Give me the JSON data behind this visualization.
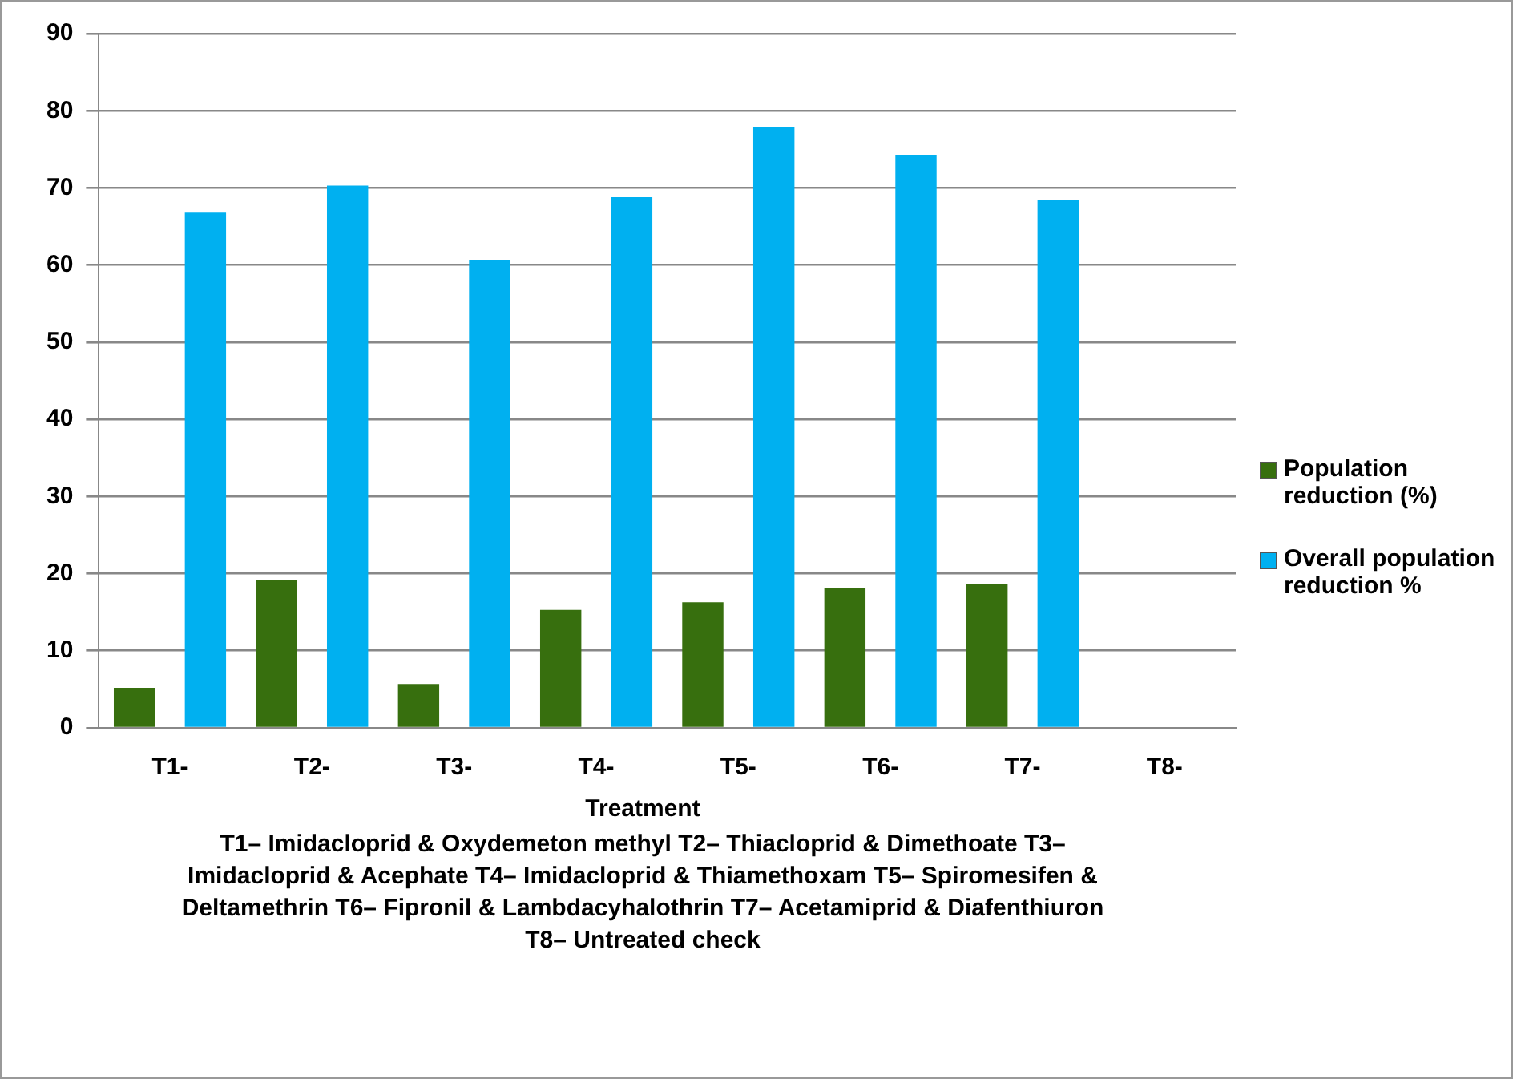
{
  "chart_data": {
    "type": "bar",
    "xlabel": "Treatment",
    "categories": [
      "T1-",
      "T2-",
      "T3-",
      "T4-",
      "T5-",
      "T6-",
      "T7-",
      "T8-"
    ],
    "series": [
      {
        "name": "Population reduction (%)",
        "color": "#376f0e",
        "values": [
          5.2,
          19.2,
          5.7,
          15.3,
          16.3,
          18.2,
          18.6,
          0
        ]
      },
      {
        "name": "Overall population reduction %",
        "color": "#00b0f0",
        "values": [
          66.8,
          70.3,
          60.7,
          68.8,
          77.9,
          74.3,
          68.5,
          0
        ]
      }
    ],
    "ylim": [
      0,
      90
    ],
    "yticks": [
      0,
      10,
      20,
      30,
      40,
      50,
      60,
      70,
      80,
      90
    ],
    "grid": "y",
    "legend": "right",
    "annotations": [
      "T1– Imidacloprid & Oxydemeton methyl T2– Thiacloprid & Dimethoate T3– Imidacloprid  & Acephate T4– Imidacloprid & Thiamethoxam T5– Spiromesifen & Deltamethrin T6–  Fipronil & Lambdacyhalothrin T7– Acetamiprid & Diafenthiuron T8– Untreated check"
    ]
  }
}
